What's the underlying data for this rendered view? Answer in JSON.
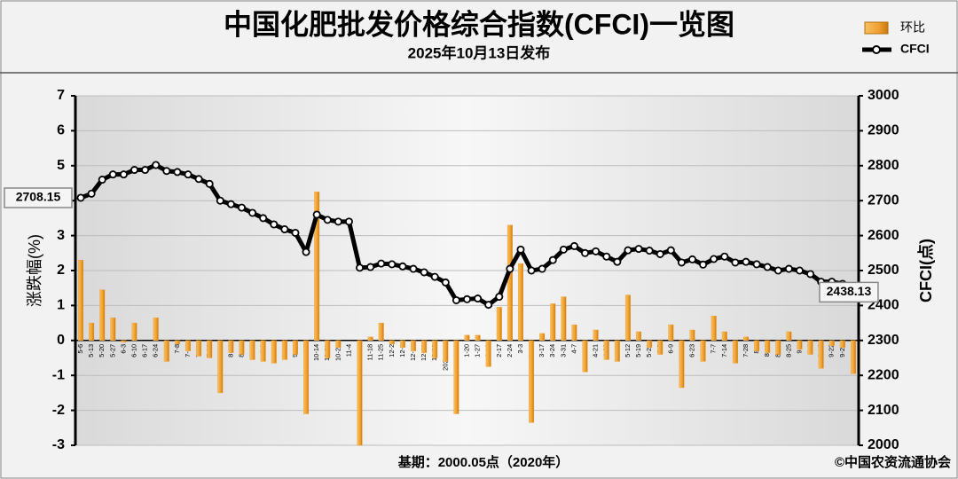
{
  "chart_data": {
    "type": "combo",
    "title": "中国化肥批发价格综合指数(CFCI)一览图",
    "subtitle": "2025年10月13日发布",
    "y_label": "涨跌幅(%)",
    "y2_label": "CFCI(点)",
    "footnote": "基期：2000.05点（2020年）",
    "source": "©中国农资流通协会",
    "legend": "top-right",
    "grid": true,
    "categories": [
      "5-6",
      "5-13",
      "5-20",
      "5-27",
      "6-3",
      "6-10",
      "6-17",
      "6-24",
      "7-1",
      "7-8",
      "7-15",
      "7-22",
      "7-29",
      "8-5",
      "8-12",
      "8-19",
      "8-26",
      "9-2",
      "9-9",
      "9-16",
      "9-23",
      "10-7",
      "10-14",
      "10-21",
      "10-28",
      "11-4",
      "11-11",
      "11-18",
      "11-25",
      "12-2",
      "12-9",
      "12-16",
      "12-23",
      "12-30",
      "2025-1-6",
      "1-13",
      "1-20",
      "1-27",
      "2-10",
      "2-17",
      "2-24",
      "3-3",
      "3-10",
      "3-17",
      "3-24",
      "3-31",
      "4-7",
      "4-14",
      "4-21",
      "4-28",
      "5-5",
      "5-12",
      "5-19",
      "5-26",
      "6-3",
      "6-9",
      "6-16",
      "6-23",
      "6-30",
      "7-7",
      "7-14",
      "7-21",
      "7-28",
      "8-4",
      "8-11",
      "8-18",
      "8-25",
      "9-1",
      "9-8",
      "9-15",
      "9-22",
      "9-29",
      "10-13"
    ],
    "series": [
      {
        "name": "环比",
        "type": "bar",
        "color": "#f0a030",
        "values": [
          2.3,
          0.5,
          1.45,
          0.65,
          -0.05,
          0.5,
          0,
          0.65,
          -0.6,
          -0.1,
          -0.3,
          -0.45,
          -0.5,
          -1.5,
          -0.35,
          -0.4,
          -0.55,
          -0.6,
          -0.65,
          -0.55,
          -0.4,
          -2.1,
          4.25,
          -0.5,
          -0.2,
          0,
          -3.0,
          0.1,
          0.5,
          -0.1,
          -0.2,
          -0.3,
          -0.35,
          -0.5,
          -0.6,
          -2.1,
          0.15,
          0.15,
          -0.75,
          0.95,
          3.3,
          2.2,
          -2.35,
          0.2,
          1.05,
          1.25,
          0.45,
          -0.9,
          0.3,
          -0.55,
          -0.6,
          1.3,
          0.25,
          -0.2,
          -0.4,
          0.45,
          -1.35,
          0.3,
          -0.6,
          0.7,
          0.25,
          -0.65,
          0.1,
          -0.3,
          -0.35,
          -0.4,
          0.25,
          -0.25,
          -0.4,
          -0.8,
          -0.15,
          -0.2,
          -0.95
        ]
      },
      {
        "name": "CFCI",
        "type": "line",
        "axis": "y2",
        "color": "#000000",
        "values": [
          2708.15,
          2720,
          2760,
          2775,
          2775,
          2788,
          2788,
          2802,
          2785,
          2782,
          2775,
          2762,
          2748,
          2700,
          2690,
          2680,
          2665,
          2650,
          2632,
          2618,
          2608,
          2553,
          2660,
          2645,
          2640,
          2640,
          2508,
          2510,
          2520,
          2518,
          2512,
          2505,
          2495,
          2482,
          2466,
          2415,
          2418,
          2420,
          2402,
          2425,
          2505,
          2560,
          2500,
          2505,
          2530,
          2560,
          2570,
          2550,
          2555,
          2540,
          2525,
          2558,
          2562,
          2557,
          2547,
          2558,
          2523,
          2532,
          2517,
          2533,
          2540,
          2523,
          2525,
          2518,
          2510,
          2500,
          2505,
          2500,
          2490,
          2468,
          2468,
          2462,
          2438.13
        ]
      }
    ],
    "ylim": [
      -3,
      7
    ],
    "yticks": [
      -3,
      -2,
      -1,
      0,
      1,
      2,
      3,
      4,
      5,
      6,
      7
    ],
    "y2lim": [
      2000,
      3000
    ],
    "y2ticks": [
      2000,
      2100,
      2200,
      2300,
      2400,
      2500,
      2600,
      2700,
      2800,
      2900,
      3000
    ]
  }
}
